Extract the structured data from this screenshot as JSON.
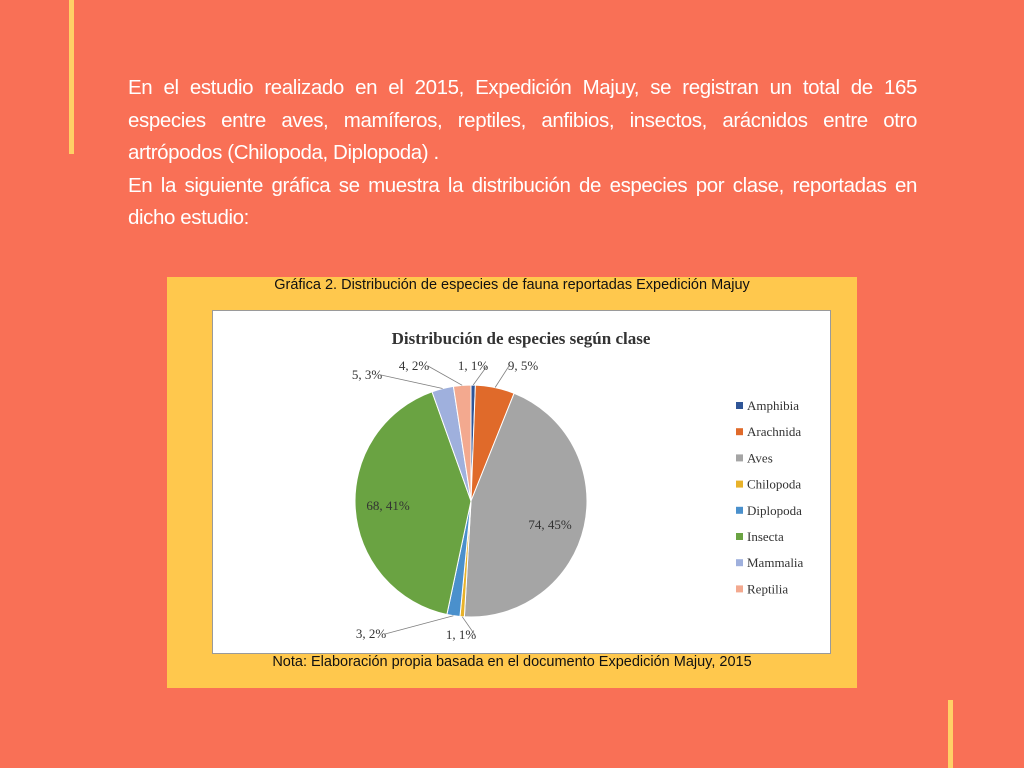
{
  "intro": {
    "paragraph1": "En el estudio realizado en el 2015, Expedición Majuy, se registran un total de 165 especies entre aves, mamíferos, reptiles, anfibios, insectos, arácnidos entre otro artrópodos (Chilopoda, Diplopoda) .",
    "paragraph2": "En la siguiente gráfica se  muestra la distribución de especies por clase, reportadas en dicho estudio:"
  },
  "figure": {
    "caption": "Gráfica 2. Distribución de especies de fauna reportadas Expedición Majuy",
    "note": "Nota: Elaboración propia basada en el documento Expedición Majuy, 2015"
  },
  "colors": {
    "background": "#f97056",
    "accent": "#ffd066",
    "card": "#ffc84d"
  },
  "chart_data": {
    "type": "pie",
    "title": "Distribución de especies según clase",
    "legend_position": "right",
    "slices": [
      {
        "name": "Amphibia",
        "value": 1,
        "label": "1, 1%",
        "color": "#2f5597"
      },
      {
        "name": "Arachnida",
        "value": 9,
        "label": "9, 5%",
        "color": "#e06a2a"
      },
      {
        "name": "Aves",
        "value": 74,
        "label": "74, 45%",
        "color": "#a5a5a5"
      },
      {
        "name": "Chilopoda",
        "value": 1,
        "label": "1, 1%",
        "color": "#e8b22a"
      },
      {
        "name": "Diplopoda",
        "value": 3,
        "label": "3, 2%",
        "color": "#4a90cc"
      },
      {
        "name": "Insecta",
        "value": 68,
        "label": "68, 41%",
        "color": "#6aa342"
      },
      {
        "name": "Mammalia",
        "value": 5,
        "label": "5, 3%",
        "color": "#9fb0dd"
      },
      {
        "name": "Reptilia",
        "value": 4,
        "label": "4, 2%",
        "color": "#f3a98f"
      }
    ]
  }
}
